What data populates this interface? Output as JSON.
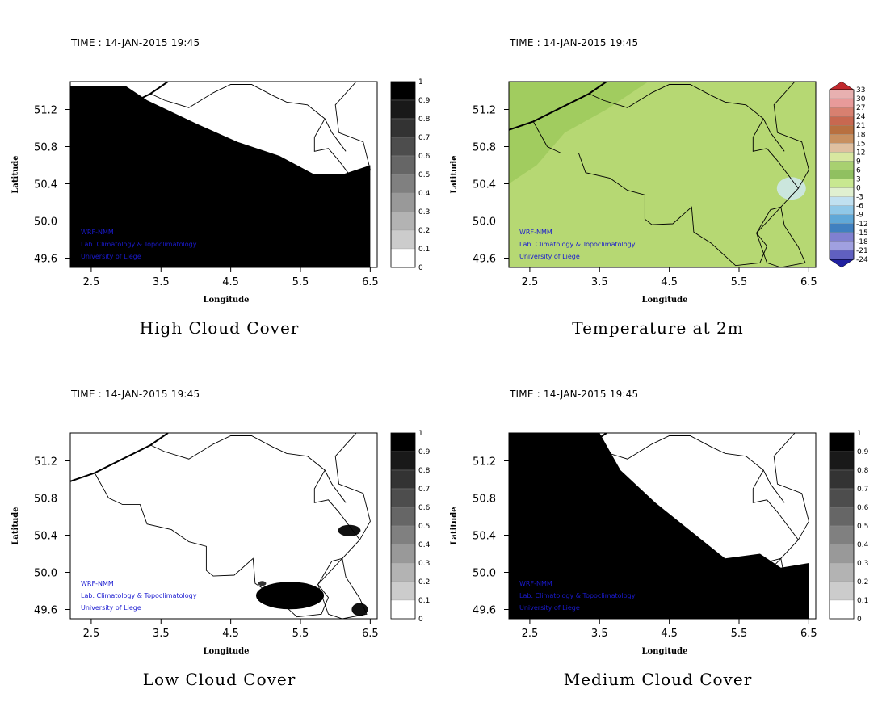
{
  "time_label": "TIME : 14-JAN-2015 19:45",
  "xlabel": "Longitude",
  "ylabel": "Latitude",
  "watermark": [
    "WRF-NMM",
    "Lab. Climatology & Topoclimatology",
    "University of Liege"
  ],
  "colors": {
    "cloud_fill": "#000000",
    "temp_fill": "#b6d873",
    "temp_dark": "#9cc95a",
    "watermark": "#1a1ad0"
  },
  "chart_data": [
    {
      "type": "heatmap",
      "title": "High Cloud Cover",
      "xlabel": "Longitude",
      "ylabel": "Latitude",
      "x_ticks": [
        "2.5",
        "3.5",
        "4.5",
        "5.5",
        "6.5"
      ],
      "y_ticks": [
        "51.2",
        "50.8",
        "50.4",
        "50.0",
        "49.6"
      ],
      "xlim": [
        2.2,
        6.6
      ],
      "ylim": [
        49.5,
        51.5
      ],
      "colorbar": {
        "ticks": [
          "1",
          "0.9",
          "0.8",
          "0.7",
          "0.6",
          "0.5",
          "0.4",
          "0.3",
          "0.2",
          "0.1",
          "0"
        ],
        "range": [
          0,
          1
        ]
      },
      "coverage_edge": [
        [
          2.2,
          51.45
        ],
        [
          3.0,
          51.45
        ],
        [
          3.3,
          51.3
        ],
        [
          4.0,
          51.05
        ],
        [
          4.6,
          50.85
        ],
        [
          5.2,
          50.7
        ],
        [
          5.7,
          50.5
        ],
        [
          6.1,
          50.5
        ],
        [
          6.5,
          50.6
        ],
        [
          6.5,
          49.5
        ],
        [
          2.2,
          49.5
        ]
      ]
    },
    {
      "type": "heatmap",
      "title": "Temperature at 2m",
      "xlabel": "Longitude",
      "ylabel": "Latitude",
      "x_ticks": [
        "2.5",
        "3.5",
        "4.5",
        "5.5",
        "6.5"
      ],
      "y_ticks": [
        "51.2",
        "50.8",
        "50.4",
        "50.0",
        "49.6"
      ],
      "xlim": [
        2.2,
        6.6
      ],
      "ylim": [
        49.5,
        51.5
      ],
      "colorbar": {
        "ticks": [
          "33",
          "30",
          "27",
          "24",
          "21",
          "18",
          "15",
          "12",
          "9",
          "6",
          "3",
          "0",
          "-3",
          "-6",
          "-9",
          "-12",
          "-15",
          "-18",
          "-21",
          "-24"
        ],
        "range": [
          -24,
          33
        ]
      }
    },
    {
      "type": "heatmap",
      "title": "Low Cloud Cover",
      "xlabel": "Longitude",
      "ylabel": "Latitude",
      "x_ticks": [
        "2.5",
        "3.5",
        "4.5",
        "5.5",
        "6.5"
      ],
      "y_ticks": [
        "51.2",
        "50.8",
        "50.4",
        "50.0",
        "49.6"
      ],
      "xlim": [
        2.2,
        6.6
      ],
      "ylim": [
        49.5,
        51.5
      ],
      "colorbar": {
        "ticks": [
          "1",
          "0.9",
          "0.8",
          "0.7",
          "0.6",
          "0.5",
          "0.4",
          "0.3",
          "0.2",
          "0.1",
          "0"
        ],
        "range": [
          0,
          1
        ]
      }
    },
    {
      "type": "heatmap",
      "title": "Medium Cloud Cover",
      "xlabel": "Longitude",
      "ylabel": "Latitude",
      "x_ticks": [
        "2.5",
        "3.5",
        "4.5",
        "5.5",
        "6.5"
      ],
      "y_ticks": [
        "51.2",
        "50.8",
        "50.4",
        "50.0",
        "49.6"
      ],
      "xlim": [
        2.2,
        6.6
      ],
      "ylim": [
        49.5,
        51.5
      ],
      "colorbar": {
        "ticks": [
          "1",
          "0.9",
          "0.8",
          "0.7",
          "0.6",
          "0.5",
          "0.4",
          "0.3",
          "0.2",
          "0.1",
          "0"
        ],
        "range": [
          0,
          1
        ]
      },
      "coverage_edge": [
        [
          2.2,
          51.5
        ],
        [
          3.5,
          51.5
        ],
        [
          3.8,
          51.1
        ],
        [
          4.3,
          50.75
        ],
        [
          4.8,
          50.45
        ],
        [
          5.3,
          50.15
        ],
        [
          5.8,
          50.2
        ],
        [
          6.1,
          50.05
        ],
        [
          6.5,
          50.1
        ],
        [
          6.5,
          49.5
        ],
        [
          2.2,
          49.5
        ]
      ]
    }
  ]
}
